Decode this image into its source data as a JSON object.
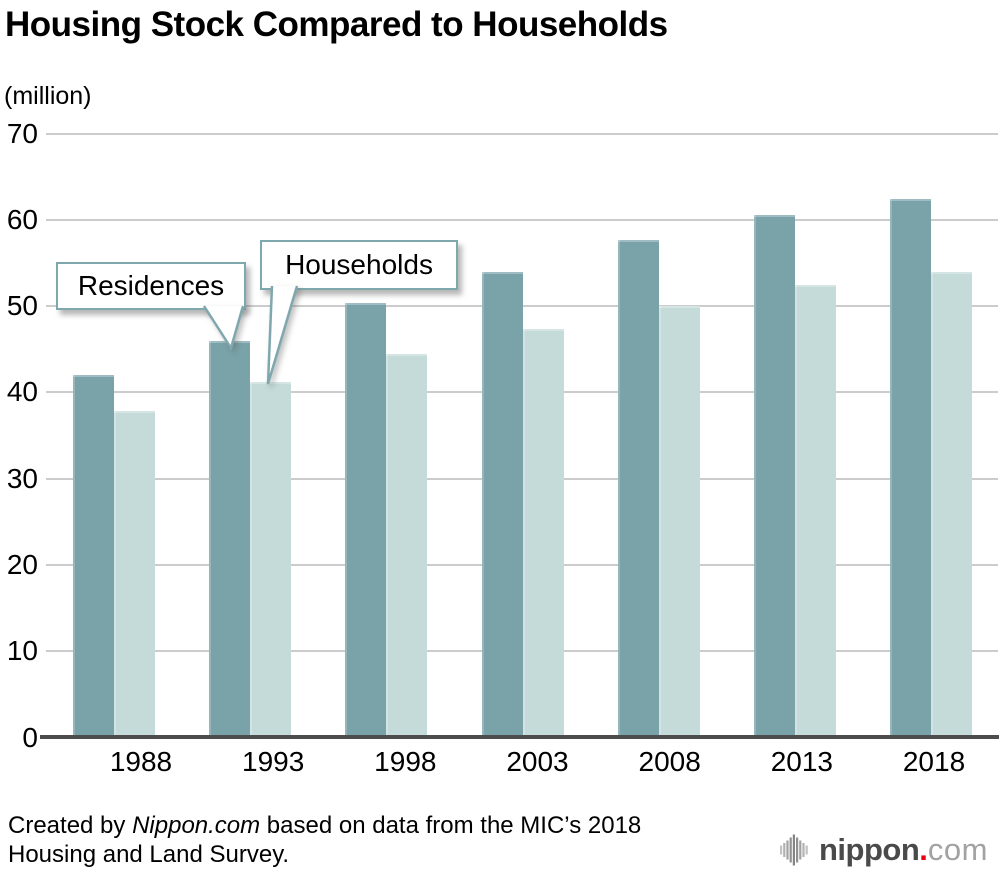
{
  "page": {
    "title": "Housing Stock Compared to Households",
    "unit_label": "(million)"
  },
  "chart_data": {
    "type": "bar",
    "title": "Housing Stock Compared to Households",
    "unit_label": "(million)",
    "categories": [
      "1988",
      "1993",
      "1998",
      "2003",
      "2008",
      "2013",
      "2018"
    ],
    "series": [
      {
        "name": "Residences",
        "color": "#79a2a9",
        "values": [
          42.0,
          45.9,
          50.3,
          53.9,
          57.6,
          60.6,
          62.4
        ]
      },
      {
        "name": "Households",
        "color": "#c4dbda",
        "values": [
          37.8,
          41.2,
          44.4,
          47.3,
          50.0,
          52.5,
          54.0
        ]
      }
    ],
    "ylim": [
      0,
      70
    ],
    "ytick_step": 10,
    "yticks": [
      0,
      10,
      20,
      30,
      40,
      50,
      60,
      70
    ],
    "grid": true,
    "legend_position": "callout-bubbles-pointing-at-1993-bars"
  },
  "callouts": {
    "residences": {
      "label": "Residences"
    },
    "households": {
      "label": "Households"
    }
  },
  "footer": {
    "prefix": "Created by ",
    "source": "Nippon.com",
    "line1_rest": " based on data from the MIC’s 2018",
    "line2": "Housing and Land Survey."
  },
  "logo": {
    "icon": "soundwave-icon",
    "brand": "nippon",
    "dot": ".",
    "tld": "com"
  },
  "colors": {
    "residences_bar": "#79a2a9",
    "households_bar": "#c4dbda",
    "gridline": "#cccccc",
    "axis": "#4d4d4d",
    "callout_border": "#7fa8ae",
    "logo_red": "#e60012",
    "logo_gray": "#4a4a4a",
    "logo_light_gray": "#a2a2a2"
  }
}
